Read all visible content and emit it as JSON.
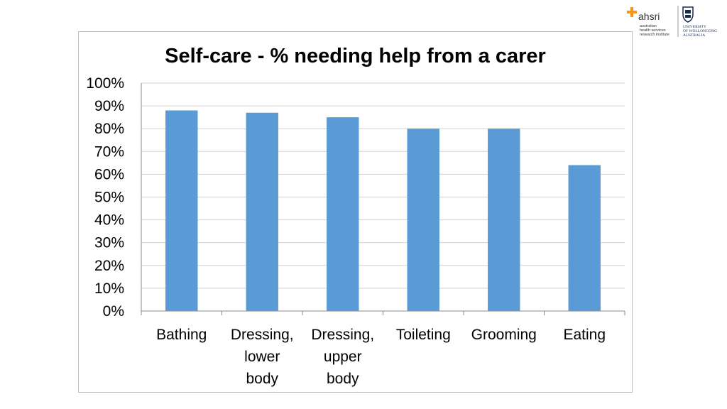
{
  "branding": {
    "ahsri_name": "ahsri",
    "ahsri_sub": [
      "australian",
      "health services",
      "research institute"
    ],
    "university_name": [
      "UNIVERSITY",
      "OF WOLLONGONG",
      "AUSTRALIA"
    ],
    "ahsri_color": "#f7941d",
    "uow_color": "#1a2a4a"
  },
  "chart_data": {
    "type": "bar",
    "title": "Self-care - % needing help from a carer",
    "categories": [
      [
        "Bathing"
      ],
      [
        "Dressing,",
        "lower",
        "body"
      ],
      [
        "Dressing,",
        "upper",
        "body"
      ],
      [
        "Toileting"
      ],
      [
        "Grooming"
      ],
      [
        "Eating"
      ]
    ],
    "values": [
      88,
      87,
      85,
      80,
      80,
      64
    ],
    "ylim": [
      0,
      100
    ],
    "yticks": [
      "0%",
      "10%",
      "20%",
      "30%",
      "40%",
      "50%",
      "60%",
      "70%",
      "80%",
      "90%",
      "100%"
    ],
    "grid": true,
    "bar_color": "#5b9bd5",
    "xlabel": "",
    "ylabel": ""
  }
}
